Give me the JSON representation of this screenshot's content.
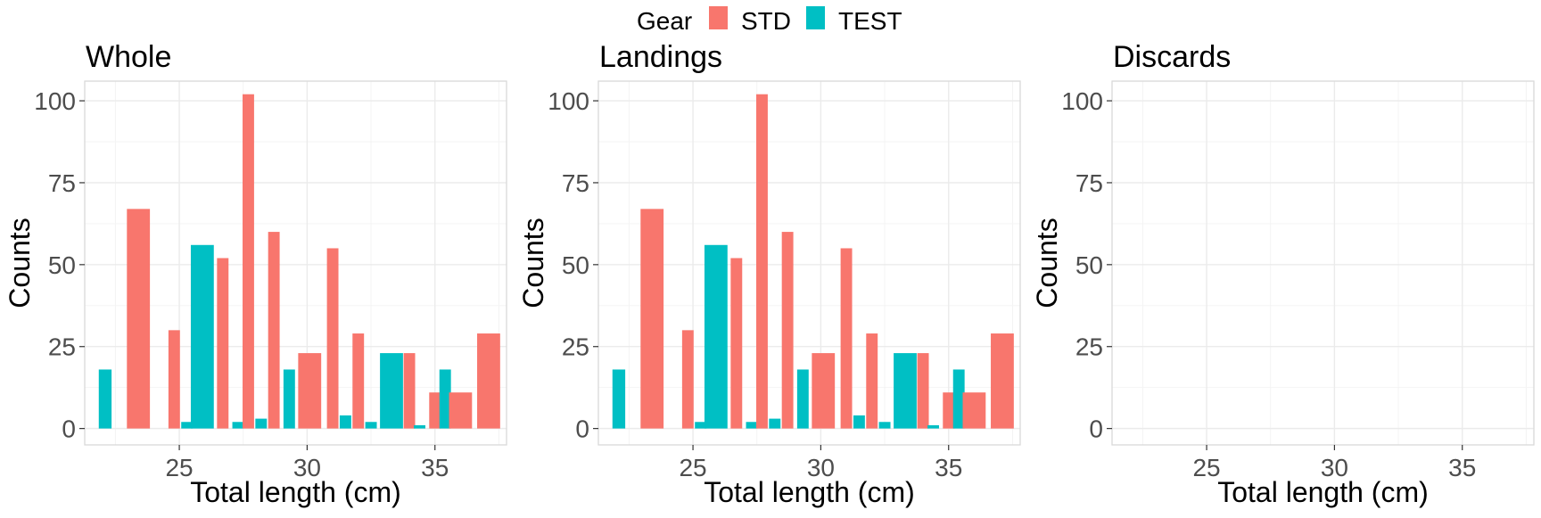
{
  "legend": {
    "title": "Gear",
    "items": [
      {
        "label": "STD",
        "color": "#F8766D"
      },
      {
        "label": "TEST",
        "color": "#00BFC4"
      }
    ]
  },
  "chart_data": {
    "type": "bar",
    "xlabel": "Total length (cm)",
    "ylabel": "Counts",
    "xlim": [
      21.3,
      37.8
    ],
    "ylim": [
      -5,
      106
    ],
    "x_ticks": [
      25,
      30,
      35
    ],
    "y_ticks": [
      0,
      25,
      50,
      75,
      100
    ],
    "grid": true,
    "legend_position": "top",
    "panels": [
      {
        "title": "Whole",
        "bars": [
          {
            "series": "TEST",
            "x": 22.1,
            "width": 0.5,
            "value": 18
          },
          {
            "series": "STD",
            "x": 23.4,
            "width": 0.9,
            "value": 67
          },
          {
            "series": "STD",
            "x": 24.8,
            "width": 0.45,
            "value": 30
          },
          {
            "series": "TEST",
            "x": 25.3,
            "width": 0.45,
            "value": 2
          },
          {
            "series": "TEST",
            "x": 25.9,
            "width": 0.9,
            "value": 56
          },
          {
            "series": "STD",
            "x": 26.7,
            "width": 0.45,
            "value": 52
          },
          {
            "series": "TEST",
            "x": 27.3,
            "width": 0.45,
            "value": 2
          },
          {
            "series": "STD",
            "x": 27.7,
            "width": 0.45,
            "value": 102
          },
          {
            "series": "TEST",
            "x": 28.2,
            "width": 0.45,
            "value": 3
          },
          {
            "series": "STD",
            "x": 28.7,
            "width": 0.45,
            "value": 60
          },
          {
            "series": "TEST",
            "x": 29.3,
            "width": 0.45,
            "value": 18
          },
          {
            "series": "STD",
            "x": 30.1,
            "width": 0.9,
            "value": 23
          },
          {
            "series": "STD",
            "x": 31.0,
            "width": 0.45,
            "value": 55
          },
          {
            "series": "TEST",
            "x": 31.5,
            "width": 0.45,
            "value": 4
          },
          {
            "series": "STD",
            "x": 32.0,
            "width": 0.45,
            "value": 29
          },
          {
            "series": "TEST",
            "x": 32.5,
            "width": 0.45,
            "value": 2
          },
          {
            "series": "TEST",
            "x": 33.3,
            "width": 0.9,
            "value": 23
          },
          {
            "series": "STD",
            "x": 34.0,
            "width": 0.45,
            "value": 23
          },
          {
            "series": "TEST",
            "x": 34.4,
            "width": 0.45,
            "value": 1
          },
          {
            "series": "STD",
            "x": 35.0,
            "width": 0.45,
            "value": 11
          },
          {
            "series": "TEST",
            "x": 35.4,
            "width": 0.45,
            "value": 18
          },
          {
            "series": "STD",
            "x": 36.0,
            "width": 0.9,
            "value": 11
          },
          {
            "series": "STD",
            "x": 37.1,
            "width": 0.9,
            "value": 29
          }
        ]
      },
      {
        "title": "Landings",
        "bars": [
          {
            "series": "TEST",
            "x": 22.1,
            "width": 0.5,
            "value": 18
          },
          {
            "series": "STD",
            "x": 23.4,
            "width": 0.9,
            "value": 67
          },
          {
            "series": "STD",
            "x": 24.8,
            "width": 0.45,
            "value": 30
          },
          {
            "series": "TEST",
            "x": 25.3,
            "width": 0.45,
            "value": 2
          },
          {
            "series": "TEST",
            "x": 25.9,
            "width": 0.9,
            "value": 56
          },
          {
            "series": "STD",
            "x": 26.7,
            "width": 0.45,
            "value": 52
          },
          {
            "series": "TEST",
            "x": 27.3,
            "width": 0.45,
            "value": 2
          },
          {
            "series": "STD",
            "x": 27.7,
            "width": 0.45,
            "value": 102
          },
          {
            "series": "TEST",
            "x": 28.2,
            "width": 0.45,
            "value": 3
          },
          {
            "series": "STD",
            "x": 28.7,
            "width": 0.45,
            "value": 60
          },
          {
            "series": "TEST",
            "x": 29.3,
            "width": 0.45,
            "value": 18
          },
          {
            "series": "STD",
            "x": 30.1,
            "width": 0.9,
            "value": 23
          },
          {
            "series": "STD",
            "x": 31.0,
            "width": 0.45,
            "value": 55
          },
          {
            "series": "TEST",
            "x": 31.5,
            "width": 0.45,
            "value": 4
          },
          {
            "series": "STD",
            "x": 32.0,
            "width": 0.45,
            "value": 29
          },
          {
            "series": "TEST",
            "x": 32.5,
            "width": 0.45,
            "value": 2
          },
          {
            "series": "TEST",
            "x": 33.3,
            "width": 0.9,
            "value": 23
          },
          {
            "series": "STD",
            "x": 34.0,
            "width": 0.45,
            "value": 23
          },
          {
            "series": "TEST",
            "x": 34.4,
            "width": 0.45,
            "value": 1
          },
          {
            "series": "STD",
            "x": 35.0,
            "width": 0.45,
            "value": 11
          },
          {
            "series": "TEST",
            "x": 35.4,
            "width": 0.45,
            "value": 18
          },
          {
            "series": "STD",
            "x": 36.0,
            "width": 0.9,
            "value": 11
          },
          {
            "series": "STD",
            "x": 37.1,
            "width": 0.9,
            "value": 29
          }
        ]
      },
      {
        "title": "Discards",
        "bars": []
      }
    ]
  }
}
